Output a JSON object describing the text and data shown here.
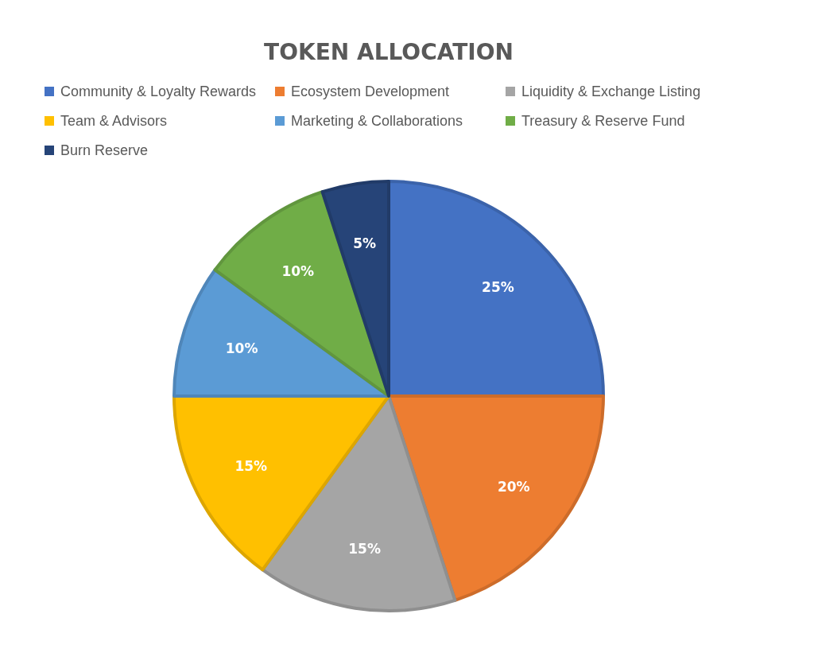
{
  "chart_data": {
    "type": "pie",
    "title": "TOKEN ALLOCATION",
    "categories": [
      "Community & Loyalty Rewards",
      "Ecosystem Development",
      "Liquidity & Exchange Listing",
      "Team & Advisors",
      "Marketing & Collaborations",
      "Treasury & Reserve Fund",
      "Burn Reserve"
    ],
    "values": [
      25,
      20,
      15,
      15,
      10,
      10,
      5
    ],
    "value_labels": [
      "25%",
      "20%",
      "15%",
      "15%",
      "10%",
      "10%",
      "5%"
    ],
    "colors": [
      "#4472c4",
      "#ed7d31",
      "#a5a5a5",
      "#ffc000",
      "#5b9bd5",
      "#70ad47",
      "#264478"
    ],
    "legend": "top"
  }
}
